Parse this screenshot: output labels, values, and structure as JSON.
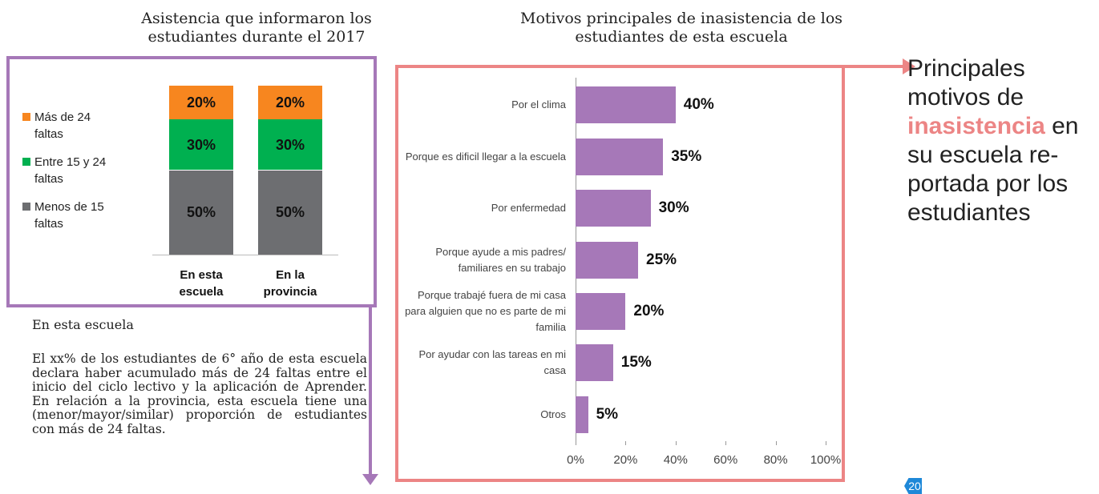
{
  "chart_data": [
    {
      "type": "stacked-bar",
      "title": "Asistencia que informaron los estudiantes durante el 2017",
      "categories": [
        "En esta escuela",
        "En la provincia"
      ],
      "ylim": [
        0,
        100
      ],
      "series": [
        {
          "name": "Menos de 15 faltas",
          "color": "#6d6e71",
          "values": [
            50,
            50
          ],
          "value_labels": [
            "50%",
            "50%"
          ]
        },
        {
          "name": "Entre 15 y 24 faltas",
          "color": "#00b050",
          "values": [
            30,
            30
          ],
          "value_labels": [
            "30%",
            "30%"
          ]
        },
        {
          "name": "Más de 24 faltas",
          "color": "#f7861f",
          "values": [
            20,
            20
          ],
          "value_labels": [
            "20%",
            "20%"
          ]
        }
      ]
    },
    {
      "type": "hbar",
      "title": "Motivos principales de  inasistencia de los estudiantes de esta escuela",
      "categories": [
        "Por el clima",
        "Porque es dificil llegar a la escuela",
        "Por enfermedad",
        "Porque ayude a mis padres/ familiares en su trabajo",
        "Porque trabajé fuera de mi casa para alguien que no es parte de mi familia",
        "Por ayudar con las tareas en mi casa",
        "Otros"
      ],
      "values": [
        40,
        35,
        30,
        25,
        20,
        15,
        5
      ],
      "value_labels": [
        "40%",
        "35%",
        "30%",
        "25%",
        "20%",
        "15%",
        "5%"
      ],
      "color": "#a678b8",
      "xlim": [
        0,
        100
      ],
      "xticks": [
        {
          "value": 0,
          "label": "0%"
        },
        {
          "value": 20,
          "label": "20%"
        },
        {
          "value": 40,
          "label": "40%"
        },
        {
          "value": 60,
          "label": "60%"
        },
        {
          "value": 80,
          "label": "80%"
        },
        {
          "value": 100,
          "label": "100%"
        }
      ]
    }
  ],
  "side_note": {
    "before": "Principales motivos de",
    "highlight": "inasistencia",
    "after": "en su escuela re-portada por los estudiantes"
  },
  "school_note": {
    "heading": "En esta escuela",
    "body": "El xx% de los estudiantes de 6° año de esta escuela declara haber acumulado más de 24 faltas entre el inicio del ciclo lectivo y la aplicación de Aprender. En relación a la provincia, esta escuela tiene una (menor/mayor/similar) proporción de estudiantes con más de 24 faltas."
  },
  "page_number": "20"
}
